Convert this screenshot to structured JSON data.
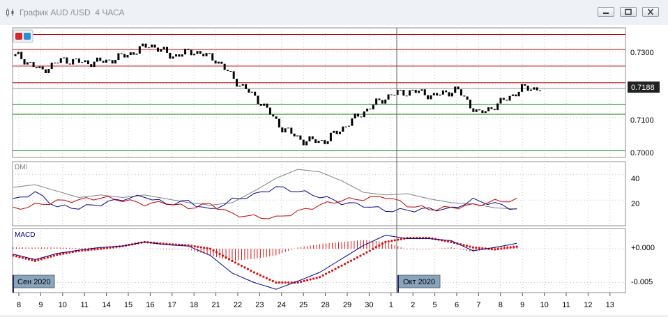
{
  "window": {
    "title": "График AUD /USD  4 ЧАСА",
    "icon": "chart-window-icon",
    "buttons": [
      "minimize-icon",
      "restore-icon",
      "close-icon"
    ]
  },
  "price_pane": {
    "current_price": "0.7188",
    "y_ticks": [
      "0.7300",
      "0.7100",
      "0.7000"
    ],
    "candle_color": "#e8a31f",
    "toolbar_buttons": [
      {
        "name": "red-square-icon",
        "color": "#d8262b"
      },
      {
        "name": "blue-square-icon",
        "color": "#2c8fd6"
      }
    ]
  },
  "dmi_pane": {
    "label": "DMI",
    "y_ticks": [
      "40",
      "20"
    ]
  },
  "macd_pane": {
    "label": "MACD",
    "y_ticks": [
      "+0.000",
      "-0.005"
    ],
    "date_labels": [
      "Сен 2020",
      "Окт 2020"
    ]
  },
  "x_axis": {
    "labels": [
      "8",
      "9",
      "10",
      "11",
      "14",
      "15",
      "16",
      "17",
      "18",
      "21",
      "22",
      "23",
      "24",
      "25",
      "28",
      "29",
      "30",
      "1",
      "2",
      "5",
      "6",
      "7",
      "8",
      "9",
      "10",
      "11",
      "12",
      "13"
    ]
  },
  "chart_data": [
    {
      "type": "candlestick",
      "title": "",
      "symbol": "AUD/USD",
      "timeframe": "4 ЧАСА",
      "x_categories": [
        "8",
        "9",
        "10",
        "11",
        "14",
        "15",
        "16",
        "17",
        "18",
        "21",
        "22",
        "23",
        "24",
        "25",
        "28",
        "29",
        "30",
        "1",
        "2",
        "5",
        "6",
        "7",
        "8",
        "9"
      ],
      "close_approx": [
        0.7285,
        0.724,
        0.7275,
        0.7265,
        0.727,
        0.729,
        0.732,
        0.7285,
        0.73,
        0.7275,
        0.7205,
        0.715,
        0.707,
        0.703,
        0.703,
        0.708,
        0.713,
        0.717,
        0.718,
        0.7165,
        0.7185,
        0.711,
        0.7145,
        0.7188
      ],
      "horizontal_levels": [
        {
          "value": 0.735,
          "color": "#c00000"
        },
        {
          "value": 0.7305,
          "color": "#c00000"
        },
        {
          "value": 0.7255,
          "color": "#c00000"
        },
        {
          "value": 0.7205,
          "color": "#c00000"
        },
        {
          "value": 0.7188,
          "color": "#909090"
        },
        {
          "value": 0.714,
          "color": "#008000"
        },
        {
          "value": 0.711,
          "color": "#008000"
        },
        {
          "value": 0.7,
          "color": "#008000"
        }
      ],
      "ylim": [
        0.698,
        0.737
      ]
    },
    {
      "type": "line",
      "title": "DMI",
      "x_categories": [
        "8",
        "9",
        "10",
        "11",
        "14",
        "15",
        "16",
        "17",
        "18",
        "21",
        "22",
        "23",
        "24",
        "25",
        "28",
        "29",
        "30",
        "1",
        "2",
        "5",
        "6",
        "7",
        "8",
        "9"
      ],
      "series": [
        {
          "color": "#808080",
          "values": [
            30,
            32,
            27,
            22,
            24,
            22,
            24,
            21,
            18,
            16,
            18,
            27,
            37,
            44,
            42,
            35,
            26,
            24,
            25,
            21,
            18,
            17,
            14,
            13
          ]
        },
        {
          "color": "#00008b",
          "values": [
            20,
            26,
            15,
            14,
            17,
            21,
            23,
            17,
            19,
            12,
            20,
            24,
            30,
            27,
            23,
            18,
            16,
            12,
            12,
            13,
            13,
            20,
            17,
            13
          ]
        },
        {
          "color": "#c00000",
          "values": [
            13,
            16,
            19,
            20,
            22,
            20,
            17,
            18,
            14,
            17,
            9,
            7,
            6,
            11,
            16,
            20,
            21,
            23,
            16,
            13,
            14,
            16,
            19,
            20
          ]
        }
      ],
      "ylim": [
        0,
        50
      ]
    },
    {
      "type": "line+bar",
      "title": "MACD",
      "x_categories": [
        "8",
        "9",
        "10",
        "11",
        "14",
        "15",
        "16",
        "17",
        "18",
        "21",
        "22",
        "23",
        "24",
        "25",
        "28",
        "29",
        "30",
        "1",
        "2",
        "5",
        "6",
        "7",
        "8",
        "9"
      ],
      "series": [
        {
          "color": "#00008b",
          "style": "line",
          "values": [
            -0.0008,
            -0.0016,
            -0.0007,
            -0.0002,
            0.0002,
            0.0004,
            0.001,
            0.0006,
            0.0004,
            -0.001,
            -0.0036,
            -0.005,
            -0.006,
            -0.0048,
            -0.0035,
            -0.0015,
            0.0005,
            0.002,
            0.0015,
            0.0015,
            0.0012,
            -0.0003,
            0.0002,
            0.0008
          ]
        },
        {
          "color": "#dd1111",
          "style": "dotted",
          "values": [
            -0.001,
            -0.0018,
            -0.0009,
            -0.0003,
            0.0,
            0.0004,
            0.001,
            0.0007,
            0.0005,
            0.0,
            -0.0018,
            -0.0035,
            -0.005,
            -0.005,
            -0.0042,
            -0.0025,
            -0.0008,
            0.001,
            0.0016,
            0.0016,
            0.001,
            0.0002,
            -0.0001,
            0.0003
          ]
        },
        {
          "color": "#dd1111",
          "style": "histogram",
          "values": [
            0.0002,
            0.0002,
            0.0002,
            0.0001,
            0.0002,
            0.0,
            0.0,
            -0.0001,
            -0.0001,
            -0.001,
            -0.0018,
            -0.0015,
            -0.001,
            0.0002,
            0.0007,
            0.001,
            0.0013,
            0.001,
            -0.0001,
            -0.0001,
            0.0002,
            -0.0005,
            0.0003,
            0.0005
          ]
        }
      ],
      "ylim": [
        -0.0065,
        0.003
      ]
    }
  ]
}
